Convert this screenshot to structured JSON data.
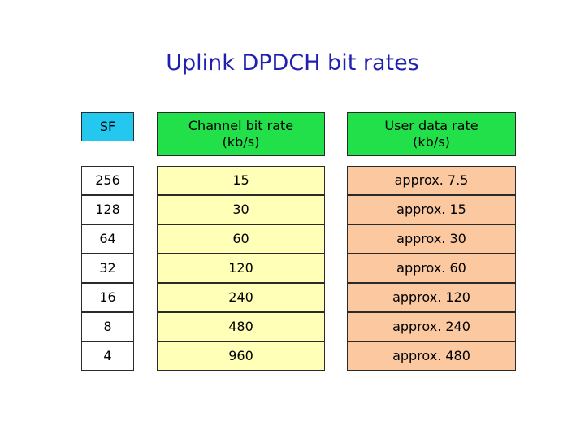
{
  "title": "Uplink DPDCH bit rates",
  "headers": {
    "sf": "SF",
    "channel": "Channel bit rate\n(kb/s)",
    "user": "User data rate\n(kb/s)"
  },
  "rows": [
    {
      "sf": "256",
      "channel": "15",
      "user": "approx. 7.5"
    },
    {
      "sf": "128",
      "channel": "30",
      "user": "approx. 15"
    },
    {
      "sf": "64",
      "channel": "60",
      "user": "approx. 30"
    },
    {
      "sf": "32",
      "channel": "120",
      "user": "approx. 60"
    },
    {
      "sf": "16",
      "channel": "240",
      "user": "approx. 120"
    },
    {
      "sf": "8",
      "channel": "480",
      "user": "approx. 240"
    },
    {
      "sf": "4",
      "channel": "960",
      "user": "approx. 480"
    }
  ],
  "colors": {
    "title": "#1f1fb0",
    "sf_header": "#24c8ef",
    "rate_headers": "#22e04a",
    "channel_cells": "#ffffb8",
    "user_cells": "#fbc8a0"
  }
}
